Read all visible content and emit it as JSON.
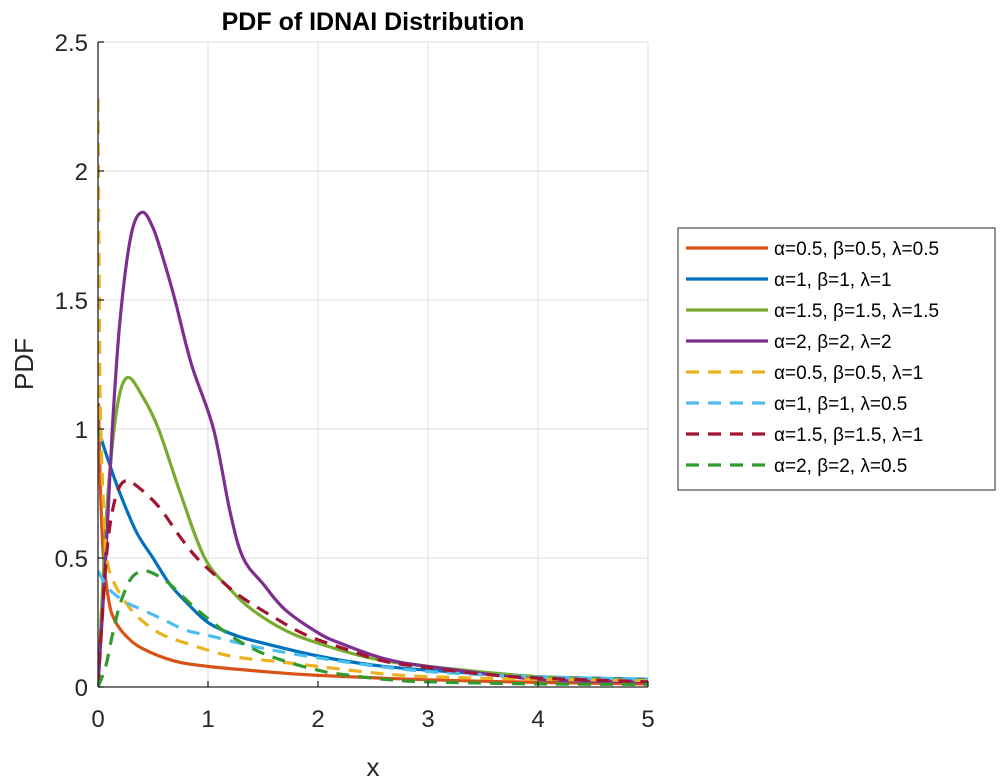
{
  "chart_data": {
    "type": "line",
    "title": "PDF of IDNAI Distribution",
    "xlabel": "x",
    "ylabel": "PDF",
    "xlim": [
      0,
      5
    ],
    "ylim": [
      0,
      2.5
    ],
    "xticks": [
      0,
      1,
      2,
      3,
      4,
      5
    ],
    "xtick_labels": [
      "0",
      "1",
      "2",
      "3",
      "4",
      "5"
    ],
    "yticks": [
      0,
      0.5,
      1,
      1.5,
      2,
      2.5
    ],
    "ytick_labels": [
      "0",
      "0.5",
      "1",
      "1.5",
      "2",
      "2.5"
    ],
    "grid": true,
    "legend_position": "outside-right",
    "series": [
      {
        "name": "α=0.5, β=0.5, λ=0.5",
        "color": "#D95319",
        "style": "solid",
        "x": [
          0.005,
          0.02,
          0.05,
          0.1,
          0.15,
          0.25,
          0.4,
          0.7,
          1.0,
          1.5,
          2.0,
          3.0,
          4.0,
          5.0
        ],
        "y": [
          1.1,
          0.8,
          0.5,
          0.33,
          0.26,
          0.2,
          0.15,
          0.1,
          0.08,
          0.06,
          0.045,
          0.028,
          0.018,
          0.012
        ]
      },
      {
        "name": "α=1, β=1, λ=1",
        "color": "#0072BD",
        "style": "solid",
        "x": [
          0,
          0.1,
          0.2,
          0.35,
          0.5,
          0.65,
          0.8,
          1.0,
          1.25,
          1.5,
          2.0,
          2.5,
          3.0,
          4.0,
          5.0
        ],
        "y": [
          1.0,
          0.87,
          0.75,
          0.6,
          0.5,
          0.4,
          0.33,
          0.25,
          0.2,
          0.17,
          0.12,
          0.085,
          0.065,
          0.04,
          0.03
        ]
      },
      {
        "name": "α=1.5, β=1.5, λ=1.5",
        "color": "#77AC30",
        "style": "solid",
        "x": [
          0,
          0.05,
          0.1,
          0.18,
          0.27,
          0.4,
          0.55,
          0.75,
          0.97,
          1.2,
          1.4,
          1.7,
          2.0,
          2.5,
          3.0,
          4.0,
          5.0
        ],
        "y": [
          0,
          0.45,
          0.8,
          1.1,
          1.2,
          1.13,
          1.0,
          0.75,
          0.5,
          0.38,
          0.3,
          0.22,
          0.17,
          0.11,
          0.08,
          0.04,
          0.025
        ]
      },
      {
        "name": "α=2, β=2, λ=2",
        "color": "#7E2F8E",
        "style": "solid",
        "x": [
          0,
          0.07,
          0.13,
          0.2,
          0.3,
          0.4,
          0.5,
          0.6,
          0.7,
          0.85,
          1.05,
          1.2,
          1.32,
          1.5,
          1.7,
          2.0,
          2.2,
          2.6,
          3.0,
          4.0,
          5.0
        ],
        "y": [
          0,
          0.5,
          1.0,
          1.42,
          1.75,
          1.84,
          1.78,
          1.65,
          1.5,
          1.25,
          1.0,
          0.68,
          0.5,
          0.4,
          0.3,
          0.21,
          0.17,
          0.11,
          0.08,
          0.03,
          0.02
        ]
      },
      {
        "name": "α=0.5, β=0.5, λ=1",
        "color": "#EDB120",
        "style": "dashed",
        "x": [
          0,
          0.01,
          0.02,
          0.05,
          0.08,
          0.15,
          0.3,
          0.45,
          0.6,
          0.8,
          1.2,
          1.6,
          2.0,
          2.5,
          3.0,
          4.0,
          5.0
        ],
        "y": [
          2.28,
          1.6,
          1.1,
          0.7,
          0.5,
          0.4,
          0.3,
          0.24,
          0.2,
          0.17,
          0.12,
          0.1,
          0.08,
          0.055,
          0.04,
          0.03,
          0.025
        ]
      },
      {
        "name": "α=1, β=1, λ=0.5",
        "color": "#4DBEEE",
        "style": "dashed",
        "x": [
          0,
          0.1,
          0.25,
          0.4,
          0.6,
          0.8,
          1.0,
          1.5,
          2.2,
          3.0,
          4.0,
          5.0
        ],
        "y": [
          0.45,
          0.38,
          0.33,
          0.3,
          0.26,
          0.22,
          0.2,
          0.15,
          0.1,
          0.06,
          0.04,
          0.03
        ]
      },
      {
        "name": "α=1.5, β=1.5, λ=1",
        "color": "#A2142F",
        "style": "dashed",
        "x": [
          0,
          0.05,
          0.1,
          0.17,
          0.25,
          0.35,
          0.55,
          0.75,
          0.9,
          1.1,
          1.3,
          1.6,
          1.9,
          2.3,
          2.6,
          3.0,
          3.5,
          4.0,
          5.0
        ],
        "y": [
          0,
          0.35,
          0.6,
          0.75,
          0.8,
          0.78,
          0.7,
          0.58,
          0.5,
          0.42,
          0.35,
          0.27,
          0.2,
          0.14,
          0.1,
          0.075,
          0.05,
          0.035,
          0.02
        ]
      },
      {
        "name": "α=2, β=2, λ=0.5",
        "color": "#319B2F",
        "style": "dashed",
        "x": [
          0,
          0.07,
          0.13,
          0.2,
          0.3,
          0.42,
          0.55,
          0.65,
          0.9,
          1.2,
          1.45,
          1.7,
          2.0,
          2.2,
          2.6,
          3.0,
          4.0,
          5.0
        ],
        "y": [
          0,
          0.08,
          0.2,
          0.32,
          0.42,
          0.45,
          0.43,
          0.4,
          0.3,
          0.2,
          0.14,
          0.1,
          0.065,
          0.05,
          0.03,
          0.02,
          0.012,
          0.01
        ]
      }
    ]
  }
}
